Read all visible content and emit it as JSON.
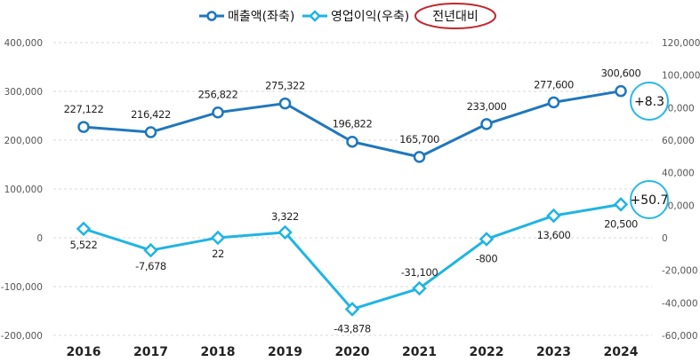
{
  "chart_data": {
    "type": "line",
    "categories": [
      "2016",
      "2017",
      "2018",
      "2019",
      "2020",
      "2021",
      "2022",
      "2023",
      "2024"
    ],
    "series": [
      {
        "name": "매출액(좌축)",
        "axis": "left",
        "color": "#1f77bd",
        "marker": "circle",
        "values": [
          227122,
          216422,
          256822,
          275322,
          196822,
          165700,
          233000,
          277600,
          300600
        ],
        "labels": [
          "227,122",
          "216,422",
          "256,822",
          "275,322",
          "196,822",
          "165,700",
          "233,000",
          "277,600",
          "300,600"
        ]
      },
      {
        "name": "영업이익(우축)",
        "axis": "right",
        "color": "#1fb4e3",
        "marker": "diamond",
        "values": [
          5522,
          -7678,
          22,
          3322,
          -43878,
          -31100,
          -800,
          13600,
          20500
        ],
        "labels": [
          "5,522",
          "-7,678",
          "22",
          "3,322",
          "-43,878",
          "-31,100",
          "-800",
          "13,600",
          "20,500"
        ]
      }
    ],
    "left_axis": {
      "range": [
        -200000,
        400000
      ],
      "ticks": [
        400000,
        300000,
        200000,
        100000,
        0,
        -100000,
        -200000
      ],
      "tick_labels": [
        "400,000",
        "300,000",
        "200,000",
        "100,000",
        "0",
        "-100,000",
        "-200,000"
      ]
    },
    "right_axis": {
      "range": [
        -60000,
        120000
      ],
      "ticks": [
        120000,
        100000,
        80000,
        60000,
        40000,
        20000,
        0,
        -20000,
        -40000,
        -60000
      ],
      "tick_labels": [
        "120,000",
        "100,000",
        "80,000",
        "60,000",
        "40,000",
        "20,000",
        "0",
        "-20,000",
        "-40,000",
        "-60,000"
      ]
    },
    "legend": {
      "placement": "top-center",
      "extra_label": "전년대비",
      "extra_color": "#c0282d"
    },
    "annotations": [
      {
        "series": "매출액(좌축)",
        "category": "2024",
        "text": "+8.3"
      },
      {
        "series": "영업이익(우축)",
        "category": "2024",
        "text": "+50.7"
      }
    ],
    "grid": true
  }
}
